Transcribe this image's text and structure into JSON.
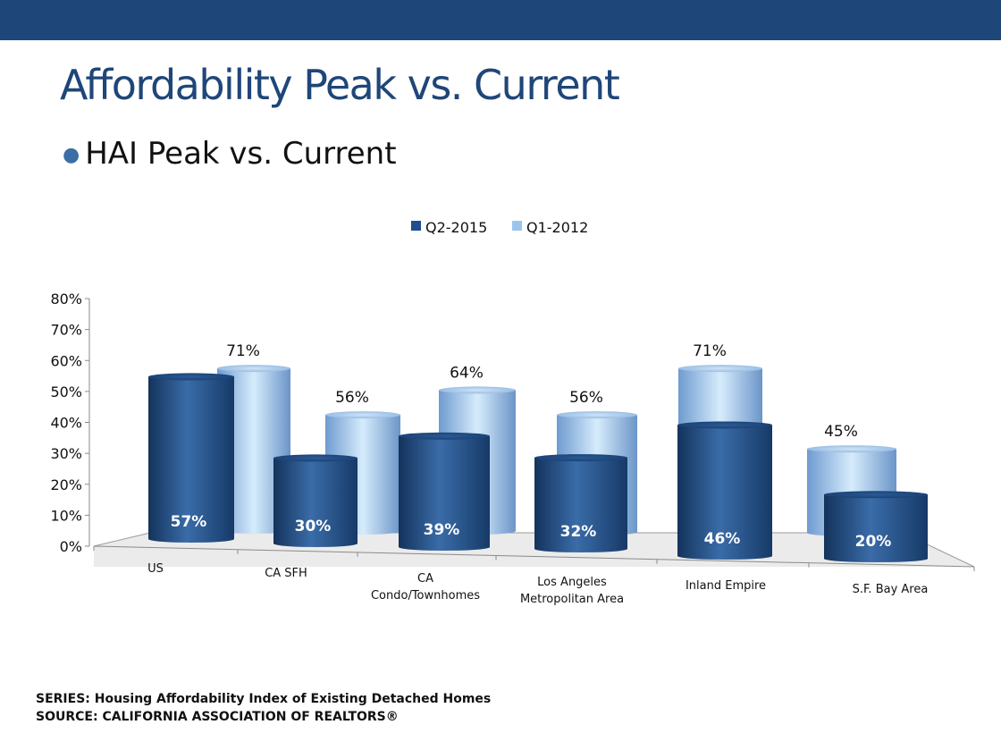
{
  "slide": {
    "title": "Affordability Peak vs. Current",
    "bullet": "HAI Peak vs. Current",
    "series_note": "SERIES: Housing Affordability Index of Existing Detached Homes",
    "source_note": "SOURCE:  CALIFORNIA ASSOCIATION OF REALTORS®"
  },
  "colors": {
    "bar_band": "#1f4679",
    "dark_series": "#1f4f8c",
    "light_series": "#9cc5ee",
    "title": "#1f4679"
  },
  "chart_data": {
    "type": "bar",
    "title": "",
    "xlabel": "",
    "ylabel": "",
    "ylim": [
      0,
      80
    ],
    "y_ticks": [
      "0%",
      "10%",
      "20%",
      "30%",
      "40%",
      "50%",
      "60%",
      "70%",
      "80%"
    ],
    "legend_position": "top",
    "categories": [
      [
        "US"
      ],
      [
        "CA SFH"
      ],
      [
        "CA",
        "Condo/Townhomes"
      ],
      [
        "Los Angeles",
        "Metropolitan Area"
      ],
      [
        "Inland Empire"
      ],
      [
        "S.F. Bay Area"
      ]
    ],
    "series": [
      {
        "name": "Q2-2015",
        "color": "#1f4f8c",
        "values": [
          57,
          30,
          39,
          32,
          46,
          20
        ],
        "labels": [
          "57%",
          "30%",
          "39%",
          "32%",
          "46%",
          "20%"
        ]
      },
      {
        "name": "Q1-2012",
        "color": "#9cc5ee",
        "values": [
          71,
          56,
          64,
          56,
          71,
          45
        ],
        "labels": [
          "71%",
          "56%",
          "64%",
          "56%",
          "71%",
          "45%"
        ]
      }
    ]
  }
}
